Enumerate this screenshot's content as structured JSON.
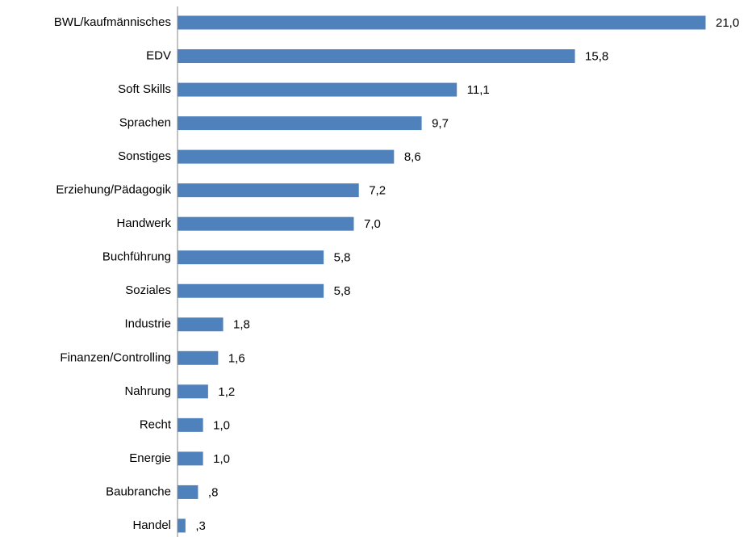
{
  "chart_data": {
    "type": "bar",
    "orientation": "horizontal",
    "categories": [
      "BWL/kaufmännisches",
      "EDV",
      "Soft Skills",
      "Sprachen",
      "Sonstiges",
      "Erziehung/Pädagogik",
      "Handwerk",
      "Buchführung",
      "Soziales",
      "Industrie",
      "Finanzen/Controlling",
      "Nahrung",
      "Recht",
      "Energie",
      "Baubranche",
      "Handel"
    ],
    "values": [
      21.0,
      15.8,
      11.1,
      9.7,
      8.6,
      7.2,
      7.0,
      5.8,
      5.8,
      1.8,
      1.6,
      1.2,
      1.0,
      1.0,
      0.8,
      0.3
    ],
    "value_labels": [
      "21,0",
      "15,8",
      "11,1",
      "9,7",
      "8,6",
      "7,2",
      "7,0",
      "5,8",
      "5,8",
      "1,8",
      "1,6",
      "1,2",
      "1,0",
      "1,0",
      ",8",
      ",3"
    ],
    "color": "#4f81bd"
  }
}
